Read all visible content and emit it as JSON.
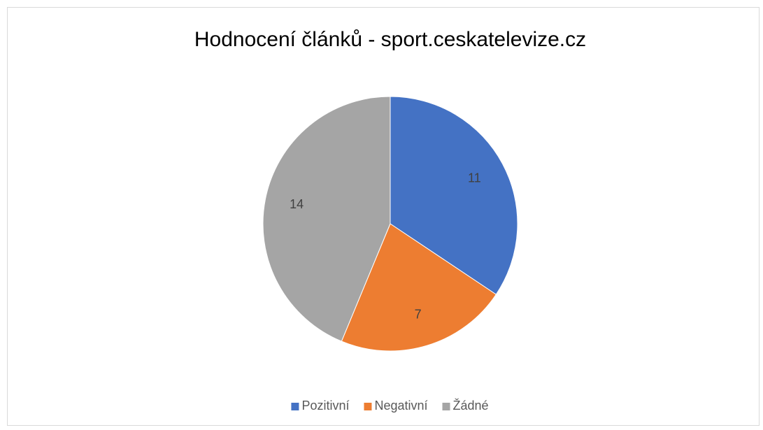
{
  "chart_data": {
    "type": "pie",
    "title": "Hodnocení článků - sport.ceskatelevize.cz",
    "categories": [
      "Pozitivní",
      "Negativní",
      "Žádné"
    ],
    "values": [
      11,
      7,
      14
    ],
    "colors": [
      "#4472c4",
      "#ed7d31",
      "#a5a5a5"
    ],
    "legend": "bottom"
  }
}
